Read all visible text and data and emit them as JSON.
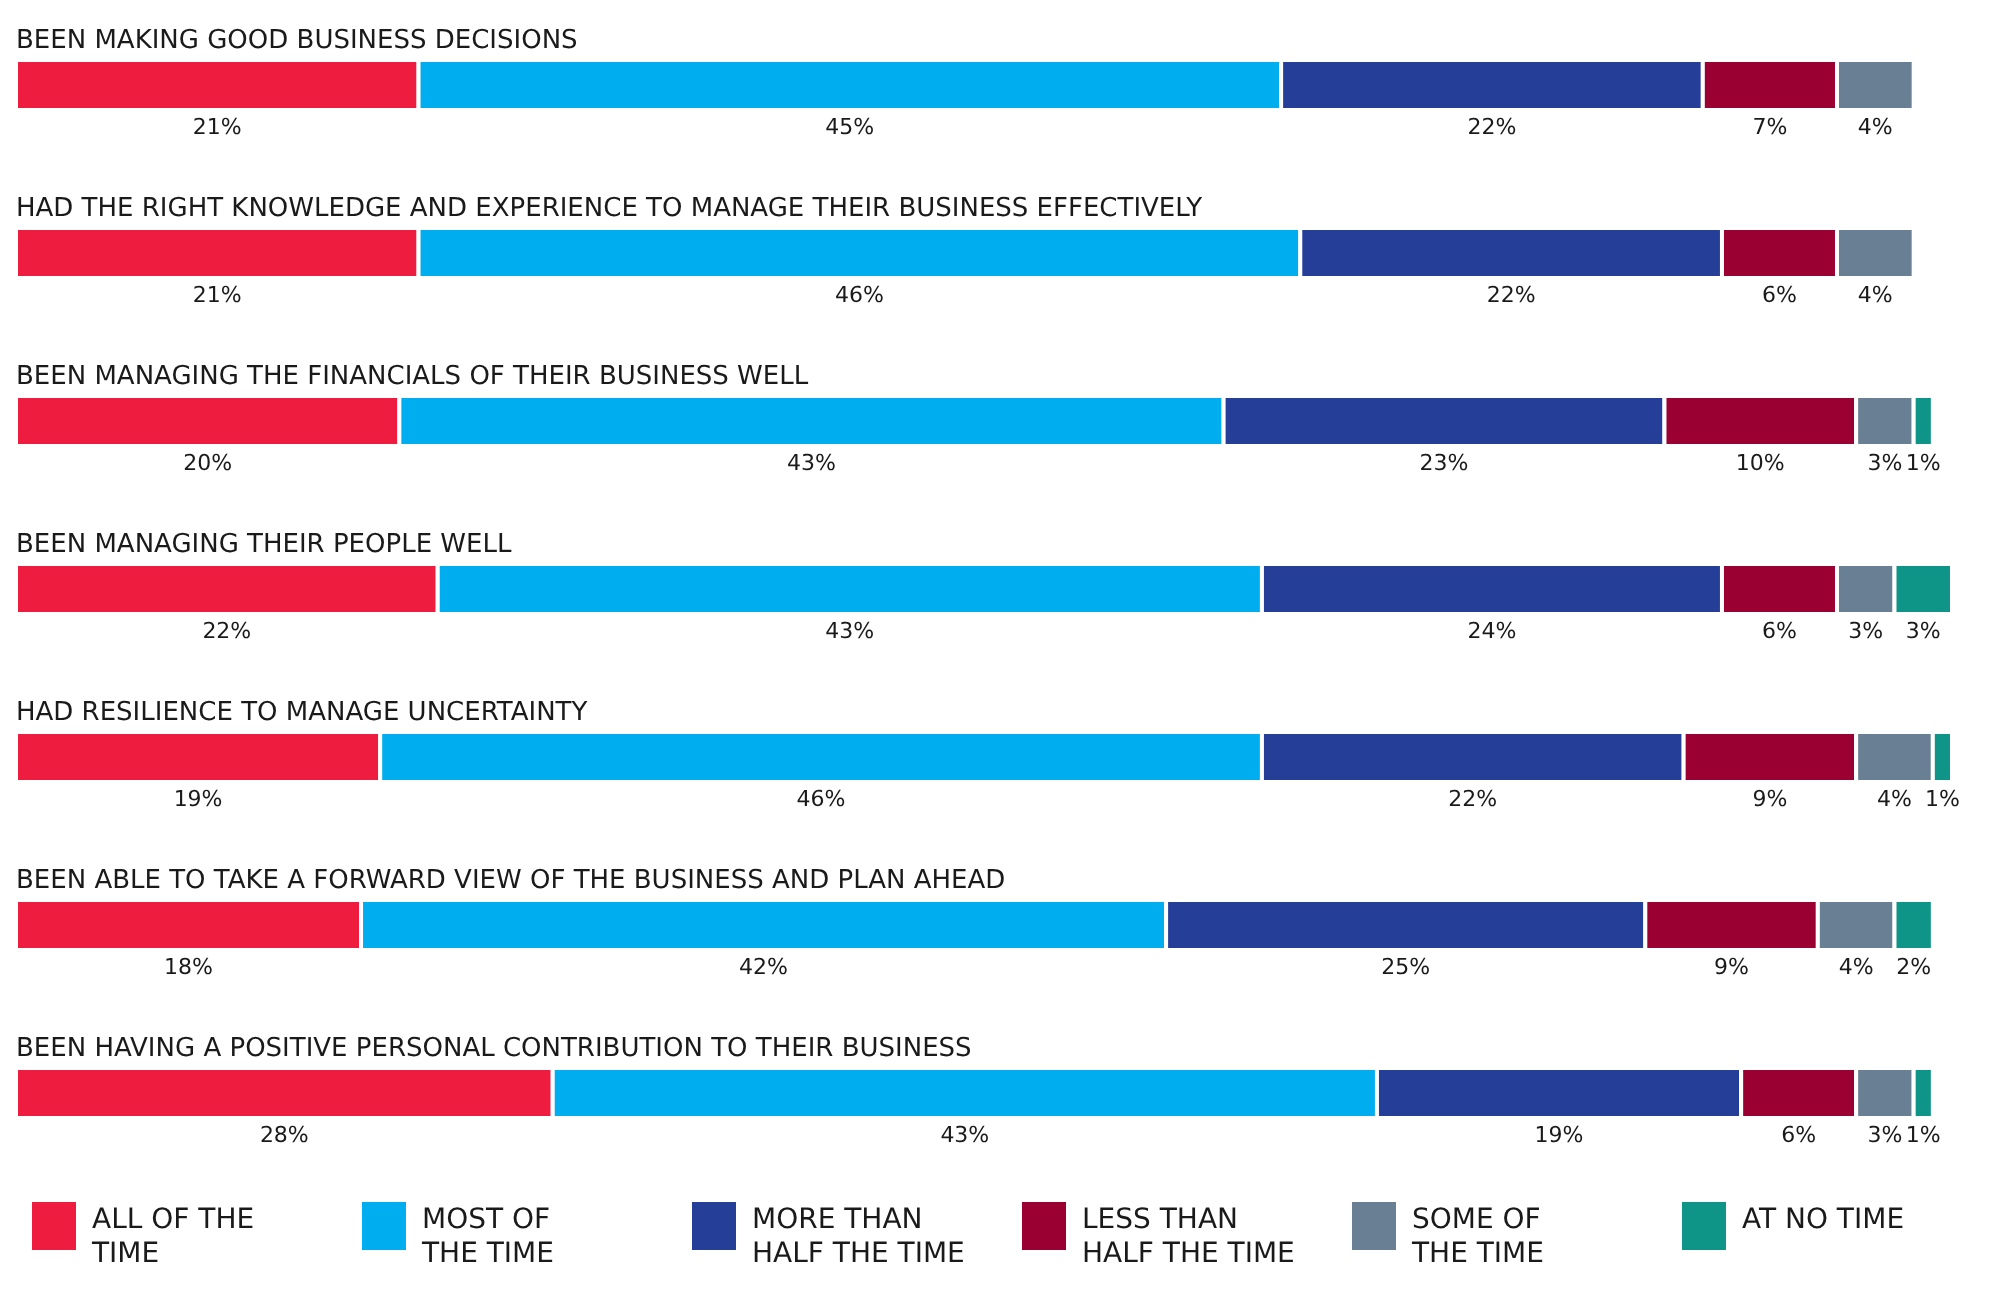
{
  "chart_data": {
    "type": "bar",
    "orientation": "horizontal",
    "stacked": true,
    "legend": "bottom",
    "tick_labels": false,
    "categories": [
      "BEEN MAKING GOOD BUSINESS DECISIONS",
      "HAD THE RIGHT KNOWLEDGE AND EXPERIENCE TO MANAGE THEIR BUSINESS EFFECTIVELY",
      "BEEN MANAGING THE FINANCIALS OF THEIR BUSINESS WELL",
      "BEEN MANAGING THEIR PEOPLE WELL",
      "HAD RESILIENCE TO MANAGE UNCERTAINTY",
      "BEEN ABLE TO TAKE A FORWARD VIEW OF THE BUSINESS AND PLAN AHEAD",
      "BEEN HAVING A POSITIVE PERSONAL CONTRIBUTION TO THEIR BUSINESS"
    ],
    "series": [
      {
        "name": "ALL OF THE TIME",
        "color": "#ee1c3e",
        "values": [
          21,
          21,
          20,
          22,
          19,
          18,
          28
        ],
        "value_labels": [
          "21%",
          "21%",
          "20%",
          "22%",
          "19%",
          "18%",
          "28%"
        ]
      },
      {
        "name": "MOST OF THE TIME",
        "color": "#00aeef",
        "values": [
          45,
          46,
          43,
          43,
          46,
          42,
          43
        ],
        "value_labels": [
          "45%",
          "46%",
          "43%",
          "43%",
          "46%",
          "42%",
          "43%"
        ]
      },
      {
        "name": "MORE THAN HALF THE TIME",
        "color": "#253f98",
        "values": [
          22,
          22,
          23,
          24,
          22,
          25,
          19
        ],
        "value_labels": [
          "22%",
          "22%",
          "23%",
          "24%",
          "22%",
          "25%",
          "19%"
        ]
      },
      {
        "name": "LESS THAN HALF THE TIME",
        "color": "#9a0032",
        "values": [
          7,
          6,
          10,
          6,
          9,
          9,
          6
        ],
        "value_labels": [
          "7%",
          "6%",
          "10%",
          "6%",
          "9%",
          "9%",
          "6%"
        ]
      },
      {
        "name": "SOME OF THE TIME",
        "color": "#687f94",
        "values": [
          4,
          4,
          3,
          3,
          4,
          4,
          3
        ],
        "value_labels": [
          "4%",
          "4%",
          "3%",
          "3%",
          "4%",
          "4%",
          "3%"
        ]
      },
      {
        "name": "AT NO TIME",
        "color": "#0f9488",
        "values": [
          null,
          null,
          1,
          3,
          1,
          2,
          1
        ],
        "value_labels": [
          null,
          null,
          "1%",
          "3%",
          "1%",
          "2%",
          "1%"
        ]
      }
    ]
  }
}
